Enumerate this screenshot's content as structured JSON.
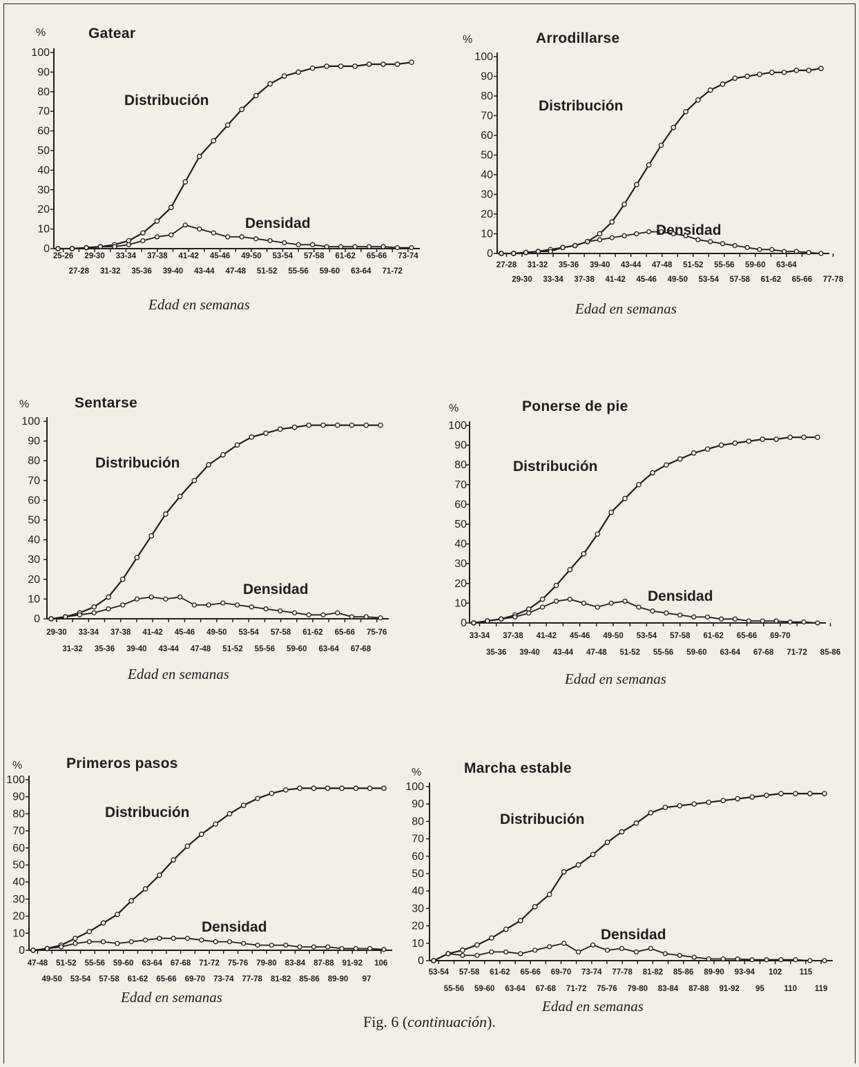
{
  "figure": {
    "caption_prefix": "Fig. 6 (",
    "caption_italic": "continuación",
    "caption_suffix": ")."
  },
  "chart_data": [
    {
      "type": "line",
      "title": "Gatear",
      "ylabel": "%",
      "xlabel": "Edad en semanas",
      "ylim": [
        0,
        100
      ],
      "yticks": [
        "0",
        "10",
        "20",
        "30",
        "40",
        "50",
        "60",
        "70",
        "80",
        "90",
        "100"
      ],
      "xtick_labels_top": [
        "25-26",
        "29-30",
        "33-34",
        "37-38",
        "41-42",
        "45-46",
        "49-50",
        "53-54",
        "57-58",
        "61-62",
        "65-66",
        "73-74"
      ],
      "xtick_labels_bottom": [
        "27-28",
        "31-32",
        "35-36",
        "39-40",
        "43-44",
        "47-48",
        "51-52",
        "55-56",
        "59-60",
        "63-64",
        "71-72"
      ],
      "annotations": [
        "Distribución",
        "Densidad"
      ],
      "series": [
        {
          "values": [
            0,
            0,
            0.5,
            1,
            2,
            4,
            8,
            14,
            21,
            34,
            47,
            55,
            63,
            71,
            78,
            84,
            88,
            90,
            92,
            93,
            93,
            93,
            94,
            94,
            94,
            95
          ]
        },
        {
          "values": [
            0,
            0,
            0.5,
            1,
            1,
            2,
            4,
            6,
            7,
            12,
            10,
            8,
            6,
            6,
            5,
            4,
            3,
            2,
            2,
            1,
            1,
            1,
            1,
            1,
            0.5,
            0.5
          ]
        }
      ]
    },
    {
      "type": "line",
      "title": "Arrodillarse",
      "ylabel": "%",
      "xlabel": "Edad en semanas",
      "ylim": [
        0,
        100
      ],
      "yticks": [
        "0",
        "10",
        "20",
        "30",
        "40",
        "50",
        "60",
        "70",
        "80",
        "90",
        "100"
      ],
      "xtick_labels_top": [
        "27-28",
        "31-32",
        "35-36",
        "39-40",
        "43-44",
        "47-48",
        "51-52",
        "55-56",
        "59-60",
        "63-64"
      ],
      "xtick_labels_bottom": [
        "29-30",
        "33-34",
        "37-38",
        "41-42",
        "45-46",
        "49-50",
        "53-54",
        "57-58",
        "61-62",
        "65-66",
        "77-78"
      ],
      "annotations": [
        "Distribución",
        "Densidad"
      ],
      "series": [
        {
          "values": [
            0,
            0,
            0.5,
            1,
            2,
            3,
            4,
            6,
            10,
            16,
            25,
            35,
            45,
            55,
            64,
            72,
            78,
            83,
            86,
            89,
            90,
            91,
            92,
            92,
            93,
            93,
            94
          ]
        },
        {
          "values": [
            0,
            0,
            0.5,
            1,
            1,
            3,
            4,
            6,
            7,
            8,
            9,
            10,
            11,
            11,
            10,
            9,
            7,
            6,
            5,
            4,
            3,
            2,
            2,
            1,
            1,
            0.5,
            0
          ]
        }
      ]
    },
    {
      "type": "line",
      "title": "Sentarse",
      "ylabel": "%",
      "xlabel": "Edad en semanas",
      "ylim": [
        0,
        100
      ],
      "yticks": [
        "0",
        "10",
        "20",
        "30",
        "40",
        "50",
        "60",
        "70",
        "80",
        "90",
        "100"
      ],
      "xtick_labels_top": [
        "29-30",
        "33-34",
        "37-38",
        "41-42",
        "45-46",
        "49-50",
        "53-54",
        "57-58",
        "61-62",
        "65-66",
        "75-76"
      ],
      "xtick_labels_bottom": [
        "31-32",
        "35-36",
        "39-40",
        "43-44",
        "47-48",
        "51-52",
        "55-56",
        "59-60",
        "63-64",
        "67-68"
      ],
      "annotations": [
        "Distribución",
        "Densidad"
      ],
      "series": [
        {
          "values": [
            0,
            1,
            3,
            6,
            11,
            20,
            31,
            42,
            53,
            62,
            70,
            78,
            83,
            88,
            92,
            94,
            96,
            97,
            98,
            98,
            98,
            98,
            98,
            98
          ]
        },
        {
          "values": [
            0,
            1,
            2,
            3,
            5,
            7,
            10,
            11,
            10,
            11,
            7,
            7,
            8,
            7,
            6,
            5,
            4,
            3,
            2,
            2,
            3,
            1,
            1,
            0.5
          ]
        }
      ]
    },
    {
      "type": "line",
      "title": "Ponerse de pie",
      "ylabel": "%",
      "xlabel": "Edad en semanas",
      "ylim": [
        0,
        100
      ],
      "yticks": [
        "0",
        "10",
        "20",
        "30",
        "40",
        "50",
        "60",
        "70",
        "80",
        "90",
        "100"
      ],
      "xtick_labels_top": [
        "33-34",
        "37-38",
        "41-42",
        "45-46",
        "49-50",
        "53-54",
        "57-58",
        "61-62",
        "65-66",
        "69-70"
      ],
      "xtick_labels_bottom": [
        "35-36",
        "39-40",
        "43-44",
        "47-48",
        "51-52",
        "55-56",
        "59-60",
        "63-64",
        "67-68",
        "71-72",
        "85-86"
      ],
      "annotations": [
        "Distribución",
        "Densidad"
      ],
      "series": [
        {
          "values": [
            0,
            1,
            2,
            4,
            7,
            12,
            19,
            27,
            35,
            45,
            56,
            63,
            70,
            76,
            80,
            83,
            86,
            88,
            90,
            91,
            92,
            93,
            93,
            94,
            94,
            94
          ]
        },
        {
          "values": [
            0,
            1,
            2,
            3,
            5,
            8,
            11,
            12,
            10,
            8,
            10,
            11,
            8,
            6,
            5,
            4,
            3,
            3,
            2,
            2,
            1,
            1,
            1,
            0.5,
            0.5,
            0
          ]
        }
      ]
    },
    {
      "type": "line",
      "title": "Primeros pasos",
      "ylabel": "%",
      "xlabel": "Edad en semanas",
      "ylim": [
        0,
        100
      ],
      "yticks": [
        "0",
        "10",
        "20",
        "30",
        "40",
        "50",
        "60",
        "70",
        "80",
        "90",
        "100"
      ],
      "xtick_labels_top": [
        "47-48",
        "51-52",
        "55-56",
        "59-60",
        "63-64",
        "67-68",
        "71-72",
        "75-76",
        "79-80",
        "83-84",
        "87-88",
        "91-92",
        "106"
      ],
      "xtick_labels_bottom": [
        "49-50",
        "53-54",
        "57-58",
        "61-62",
        "65-66",
        "69-70",
        "73-74",
        "77-78",
        "81-82",
        "85-86",
        "89-90",
        "97"
      ],
      "annotations": [
        "Distribución",
        "Densidad"
      ],
      "series": [
        {
          "values": [
            0,
            1,
            3,
            7,
            11,
            16,
            21,
            29,
            36,
            44,
            53,
            61,
            68,
            74,
            80,
            85,
            89,
            92,
            94,
            95,
            95,
            95,
            95,
            95,
            95,
            95
          ]
        },
        {
          "values": [
            0,
            1,
            2,
            4,
            5,
            5,
            4,
            5,
            6,
            7,
            7,
            7,
            6,
            5,
            5,
            4,
            3,
            3,
            3,
            2,
            2,
            2,
            1,
            1,
            1,
            0.5
          ]
        }
      ]
    },
    {
      "type": "line",
      "title": "Marcha estable",
      "ylabel": "%",
      "xlabel": "Edad en semanas",
      "ylim": [
        0,
        100
      ],
      "yticks": [
        "0",
        "10",
        "20",
        "30",
        "40",
        "50",
        "60",
        "70",
        "80",
        "90",
        "100"
      ],
      "xtick_labels_top": [
        "53-54",
        "57-58",
        "61-62",
        "65-66",
        "69-70",
        "73-74",
        "77-78",
        "81-82",
        "85-86",
        "89-90",
        "93-94",
        "102",
        "115"
      ],
      "xtick_labels_bottom": [
        "55-56",
        "59-60",
        "63-64",
        "67-68",
        "71-72",
        "75-76",
        "79-80",
        "83-84",
        "87-88",
        "91-92",
        "95",
        "110",
        "119"
      ],
      "annotations": [
        "Distribución",
        "Densidad"
      ],
      "series": [
        {
          "values": [
            0,
            4,
            6,
            9,
            13,
            18,
            23,
            31,
            38,
            51,
            55,
            61,
            68,
            74,
            79,
            85,
            88,
            89,
            90,
            91,
            92,
            93,
            94,
            95,
            96,
            96,
            96,
            96
          ]
        },
        {
          "values": [
            0,
            4,
            3,
            3,
            5,
            5,
            4,
            6,
            8,
            10,
            5,
            9,
            6,
            7,
            5,
            7,
            4,
            3,
            2,
            1,
            1,
            1,
            0.5,
            0.5,
            0.5,
            0.5,
            0,
            0
          ]
        }
      ]
    }
  ]
}
